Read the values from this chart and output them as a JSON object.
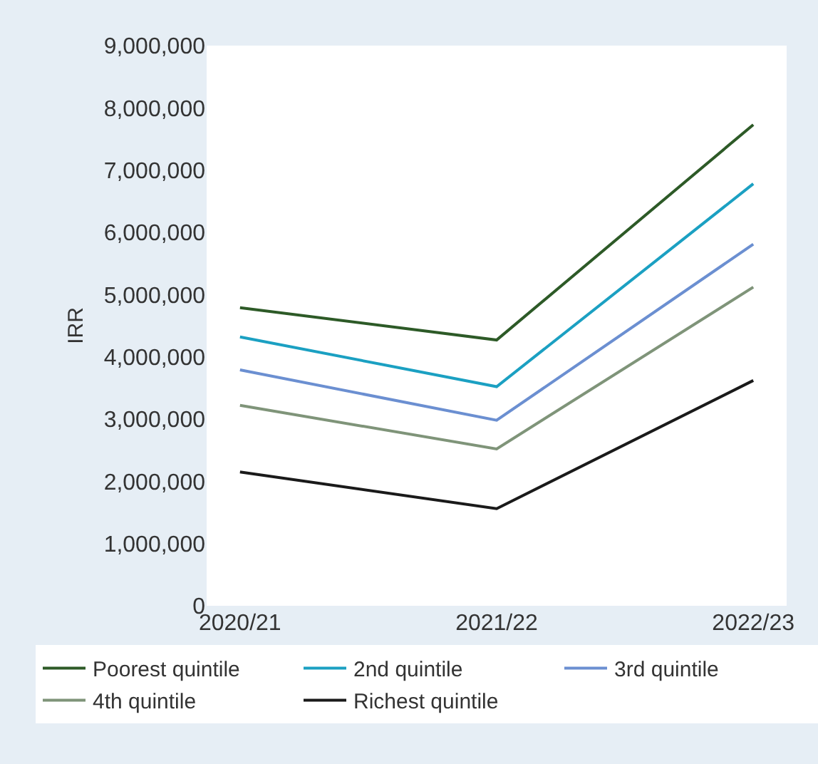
{
  "chart_data": {
    "type": "line",
    "ylabel": "IRR",
    "categories": [
      "2020/21",
      "2021/22",
      "2022/23"
    ],
    "series": [
      {
        "name": "Poorest quintile",
        "color": "#2d5a27",
        "values": [
          4790000,
          4270000,
          7730000
        ]
      },
      {
        "name": "2nd quintile",
        "color": "#1ba0c2",
        "values": [
          4320000,
          3520000,
          6780000
        ]
      },
      {
        "name": "3rd quintile",
        "color": "#6b8fd1",
        "values": [
          3790000,
          2980000,
          5810000
        ]
      },
      {
        "name": "4th quintile",
        "color": "#7f9479",
        "values": [
          3220000,
          2520000,
          5120000
        ]
      },
      {
        "name": "Richest quintile",
        "color": "#1a1a1a",
        "values": [
          2150000,
          1560000,
          3620000
        ]
      }
    ],
    "ylim": [
      0,
      9000000
    ],
    "yticks": [
      {
        "value": 0,
        "label": "0"
      },
      {
        "value": 1000000,
        "label": "1,000,000"
      },
      {
        "value": 2000000,
        "label": "2,000,000"
      },
      {
        "value": 3000000,
        "label": "3,000,000"
      },
      {
        "value": 4000000,
        "label": "4,000,000"
      },
      {
        "value": 5000000,
        "label": "5,000,000"
      },
      {
        "value": 6000000,
        "label": "6,000,000"
      },
      {
        "value": 7000000,
        "label": "7,000,000"
      },
      {
        "value": 8000000,
        "label": "8,000,000"
      },
      {
        "value": 9000000,
        "label": "9,000,000"
      }
    ],
    "legend": "bottom",
    "marker": "none",
    "line_style": "solid"
  }
}
